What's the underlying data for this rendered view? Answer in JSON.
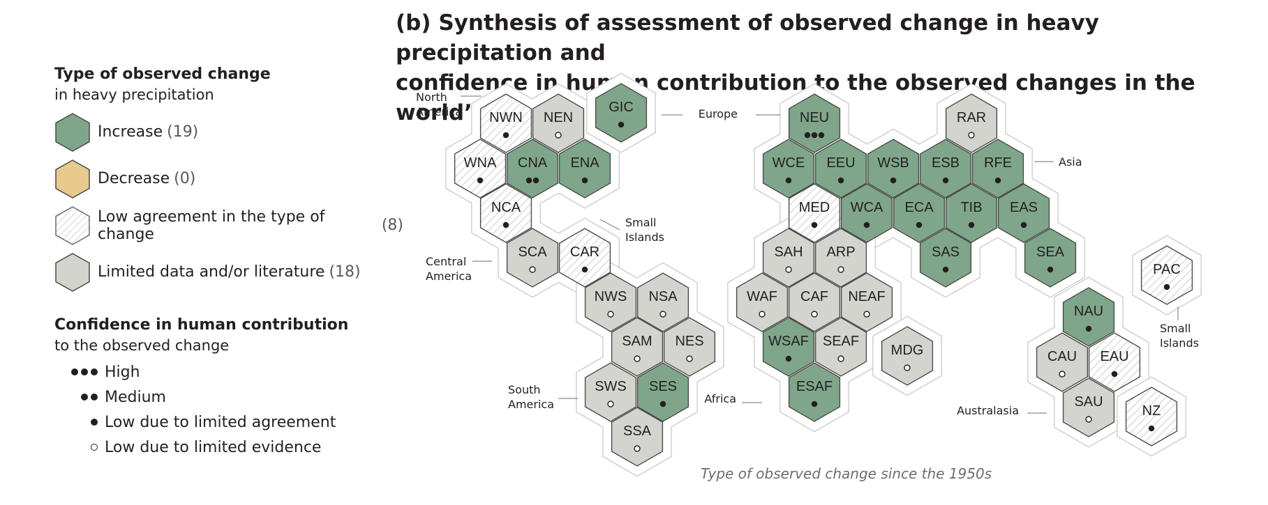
{
  "title": {
    "line1_prefix": "(b) Synthesis of assessment of observed change in ",
    "line1_bold": "heavy precipitation",
    "line1_suffix": " and",
    "line2": "confidence in human contribution to the observed changes in the world’s regions"
  },
  "legend": {
    "type_heading": "Type of observed change",
    "type_subheading": "in heavy precipitation",
    "types": [
      {
        "key": "increase",
        "label": "Increase",
        "count": "(19)",
        "color": "#7fa68a"
      },
      {
        "key": "decrease",
        "label": "Decrease",
        "count": "(0)",
        "color": "#e8c98e"
      },
      {
        "key": "low_agreement",
        "label": "Low agreement in the type of change",
        "count": "(8)",
        "color": "#ffffff"
      },
      {
        "key": "limited_data",
        "label": "Limited data and/or literature",
        "count": "(18)",
        "color": "#d4d4cf"
      }
    ],
    "confidence_heading": "Confidence in human contribution",
    "confidence_subheading": "to the observed change",
    "confidence_levels": [
      {
        "label": "High",
        "marker": "high"
      },
      {
        "label": "Medium",
        "marker": "medium"
      },
      {
        "label": "Low due to limited agreement",
        "marker": "low_agreement"
      },
      {
        "label": "Low due to limited evidence",
        "marker": "low_evidence"
      }
    ]
  },
  "colors": {
    "increase": "#7fa68a",
    "decrease": "#e8c98e",
    "low_agreement": "#ffffff",
    "limited_data": "#d4d4cf",
    "stroke": "#4a4a4a",
    "halo": "#bdbdbd"
  },
  "group_labels": [
    {
      "key": "north_america",
      "lines": [
        "North",
        "America"
      ]
    },
    {
      "key": "europe",
      "lines": [
        "Europe"
      ]
    },
    {
      "key": "asia",
      "lines": [
        "Asia"
      ]
    },
    {
      "key": "small_islands_caribbean",
      "lines": [
        "Small",
        "Islands"
      ]
    },
    {
      "key": "central_america",
      "lines": [
        "Central",
        "America"
      ]
    },
    {
      "key": "south_america",
      "lines": [
        "South",
        "America"
      ]
    },
    {
      "key": "africa",
      "lines": [
        "Africa"
      ]
    },
    {
      "key": "australasia",
      "lines": [
        "Australasia"
      ]
    },
    {
      "key": "small_islands_pacific",
      "lines": [
        "Small",
        "Islands"
      ]
    }
  ],
  "regions": [
    {
      "code": "NWN",
      "type": "low_agreement",
      "confidence": "low_agreement"
    },
    {
      "code": "NEN",
      "type": "limited_data",
      "confidence": "low_evidence"
    },
    {
      "code": "GIC",
      "type": "increase",
      "confidence": "low_agreement"
    },
    {
      "code": "WNA",
      "type": "low_agreement",
      "confidence": "low_agreement"
    },
    {
      "code": "CNA",
      "type": "increase",
      "confidence": "medium"
    },
    {
      "code": "ENA",
      "type": "increase",
      "confidence": "low_agreement"
    },
    {
      "code": "NCA",
      "type": "low_agreement",
      "confidence": "low_agreement"
    },
    {
      "code": "SCA",
      "type": "limited_data",
      "confidence": "low_evidence"
    },
    {
      "code": "CAR",
      "type": "low_agreement",
      "confidence": "low_agreement"
    },
    {
      "code": "NWS",
      "type": "limited_data",
      "confidence": "low_evidence"
    },
    {
      "code": "NSA",
      "type": "limited_data",
      "confidence": "low_evidence"
    },
    {
      "code": "SAM",
      "type": "limited_data",
      "confidence": "low_evidence"
    },
    {
      "code": "NES",
      "type": "limited_data",
      "confidence": "low_evidence"
    },
    {
      "code": "SWS",
      "type": "limited_data",
      "confidence": "low_evidence"
    },
    {
      "code": "SES",
      "type": "increase",
      "confidence": "low_agreement"
    },
    {
      "code": "SSA",
      "type": "limited_data",
      "confidence": "low_evidence"
    },
    {
      "code": "NEU",
      "type": "increase",
      "confidence": "high"
    },
    {
      "code": "RAR",
      "type": "limited_data",
      "confidence": "low_evidence"
    },
    {
      "code": "WCE",
      "type": "increase",
      "confidence": "low_agreement"
    },
    {
      "code": "EEU",
      "type": "increase",
      "confidence": "low_agreement"
    },
    {
      "code": "WSB",
      "type": "increase",
      "confidence": "low_agreement"
    },
    {
      "code": "ESB",
      "type": "increase",
      "confidence": "low_agreement"
    },
    {
      "code": "RFE",
      "type": "increase",
      "confidence": "low_agreement"
    },
    {
      "code": "MED",
      "type": "low_agreement",
      "confidence": "low_agreement"
    },
    {
      "code": "WCA",
      "type": "increase",
      "confidence": "low_agreement"
    },
    {
      "code": "ECA",
      "type": "increase",
      "confidence": "low_agreement"
    },
    {
      "code": "TIB",
      "type": "increase",
      "confidence": "low_agreement"
    },
    {
      "code": "EAS",
      "type": "increase",
      "confidence": "low_agreement"
    },
    {
      "code": "SAS",
      "type": "increase",
      "confidence": "low_agreement"
    },
    {
      "code": "SEA",
      "type": "increase",
      "confidence": "low_agreement"
    },
    {
      "code": "SAH",
      "type": "limited_data",
      "confidence": "low_evidence"
    },
    {
      "code": "ARP",
      "type": "limited_data",
      "confidence": "low_evidence"
    },
    {
      "code": "WAF",
      "type": "limited_data",
      "confidence": "low_evidence"
    },
    {
      "code": "CAF",
      "type": "limited_data",
      "confidence": "low_evidence"
    },
    {
      "code": "NEAF",
      "type": "limited_data",
      "confidence": "low_evidence"
    },
    {
      "code": "WSAF",
      "type": "increase",
      "confidence": "low_agreement"
    },
    {
      "code": "SEAF",
      "type": "limited_data",
      "confidence": "low_evidence"
    },
    {
      "code": "ESAF",
      "type": "increase",
      "confidence": "low_agreement"
    },
    {
      "code": "MDG",
      "type": "limited_data",
      "confidence": "low_evidence"
    },
    {
      "code": "PAC",
      "type": "low_agreement",
      "confidence": "low_agreement"
    },
    {
      "code": "NAU",
      "type": "increase",
      "confidence": "low_agreement"
    },
    {
      "code": "CAU",
      "type": "limited_data",
      "confidence": "low_evidence"
    },
    {
      "code": "EAU",
      "type": "low_agreement",
      "confidence": "low_agreement"
    },
    {
      "code": "SAU",
      "type": "limited_data",
      "confidence": "low_evidence"
    },
    {
      "code": "NZ",
      "type": "low_agreement",
      "confidence": "low_agreement"
    }
  ],
  "footnote": "Type of observed change since the 1950s"
}
